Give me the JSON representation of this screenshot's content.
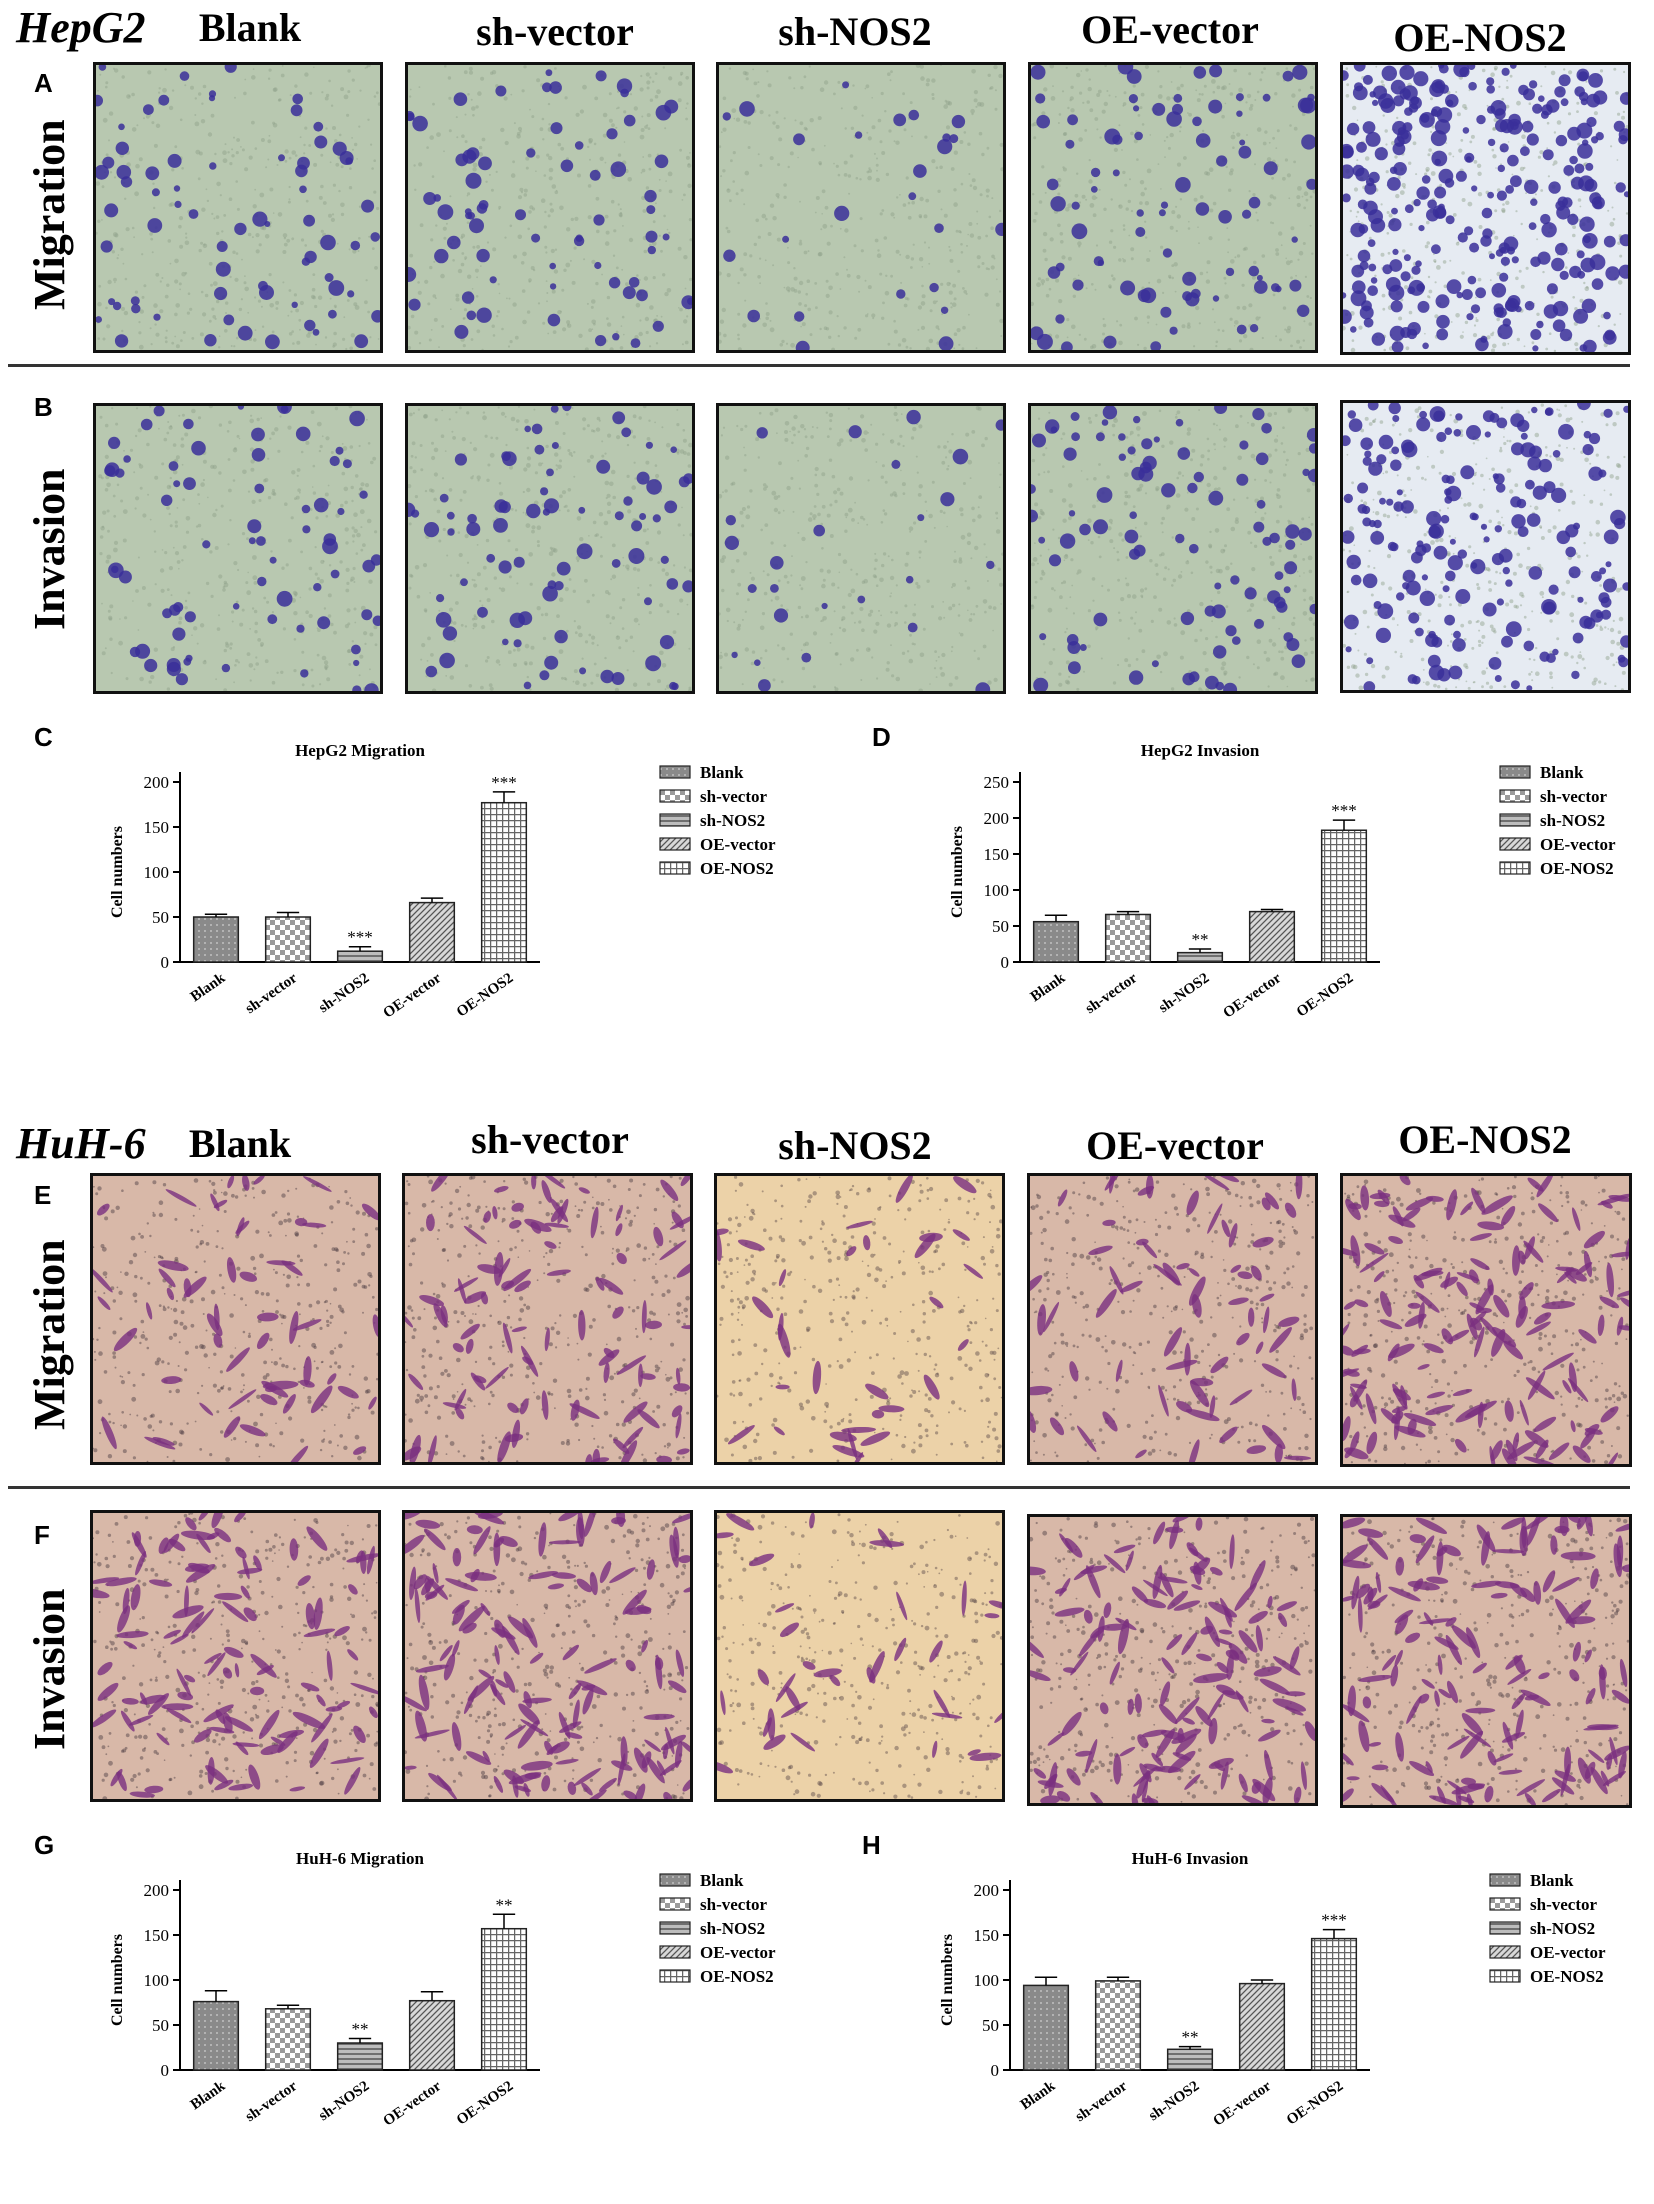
{
  "hepg2": {
    "title": "HepG2",
    "columns": [
      "Blank",
      "sh-vector",
      "sh-NOS2",
      "OE-vector",
      "OE-NOS2"
    ],
    "panels": {
      "A": "A",
      "B": "B",
      "C": "C",
      "D": "D"
    },
    "rows": {
      "migration": "Migration",
      "invasion": "Invasion"
    }
  },
  "huh6": {
    "title": "HuH-6",
    "columns": [
      "Blank",
      "sh-vector",
      "sh-NOS2",
      "OE-vector",
      "OE-NOS2"
    ],
    "panels": {
      "E": "E",
      "F": "F",
      "G": "G",
      "H": "H"
    },
    "rows": {
      "migration": "Migration",
      "invasion": "Invasion"
    }
  },
  "colors": {
    "hepg2_background": "#b8c8b0",
    "hepg2_stain": "#3a2f9a",
    "huh6_background": "#d8b8a8",
    "huh6_stain": "#7a2f80",
    "bar_fill": "#8a8a8a",
    "axis": "#000000"
  },
  "legend_patterns": [
    "dots",
    "checker",
    "horizontal-lines",
    "diagonal-lines",
    "grid"
  ],
  "chart_data": [
    {
      "id": "C",
      "type": "bar",
      "title": "HepG2 Migration",
      "ylabel": "Cell numbers",
      "xlabel": "",
      "categories": [
        "Blank",
        "sh-vector",
        "sh-NOS2",
        "OE-vector",
        "OE-NOS2"
      ],
      "values": [
        50,
        50,
        12,
        66,
        177
      ],
      "errors": [
        3,
        5,
        5,
        5,
        12
      ],
      "significance": [
        "",
        "",
        "***",
        "",
        "***"
      ],
      "ylim": [
        0,
        200
      ],
      "yticks": [
        0,
        50,
        100,
        150,
        200
      ],
      "legend": [
        "Blank",
        "sh-vector",
        "sh-NOS2",
        "OE-vector",
        "OE-NOS2"
      ],
      "legend_position": "right"
    },
    {
      "id": "D",
      "type": "bar",
      "title": "HepG2 Invasion",
      "ylabel": "Cell numbers",
      "xlabel": "",
      "categories": [
        "Blank",
        "sh-vector",
        "sh-NOS2",
        "OE-vector",
        "OE-NOS2"
      ],
      "values": [
        56,
        66,
        13,
        70,
        183
      ],
      "errors": [
        9,
        4,
        5,
        3,
        14
      ],
      "significance": [
        "",
        "",
        "**",
        "",
        "***"
      ],
      "ylim": [
        0,
        250
      ],
      "yticks": [
        0,
        50,
        100,
        150,
        200,
        250
      ],
      "legend": [
        "Blank",
        "sh-vector",
        "sh-NOS2",
        "OE-vector",
        "OE-NOS2"
      ],
      "legend_position": "right"
    },
    {
      "id": "G",
      "type": "bar",
      "title": "HuH-6 Migration",
      "ylabel": "Cell numbers",
      "xlabel": "",
      "categories": [
        "Blank",
        "sh-vector",
        "sh-NOS2",
        "OE-vector",
        "OE-NOS2"
      ],
      "values": [
        76,
        68,
        30,
        77,
        157
      ],
      "errors": [
        12,
        4,
        5,
        10,
        16
      ],
      "significance": [
        "",
        "",
        "**",
        "",
        "**"
      ],
      "ylim": [
        0,
        200
      ],
      "yticks": [
        0,
        50,
        100,
        150,
        200
      ],
      "legend": [
        "Blank",
        "sh-vector",
        "sh-NOS2",
        "OE-vector",
        "OE-NOS2"
      ],
      "legend_position": "right"
    },
    {
      "id": "H",
      "type": "bar",
      "title": "HuH-6 Invasion",
      "ylabel": "Cell numbers",
      "xlabel": "",
      "categories": [
        "Blank",
        "sh-vector",
        "sh-NOS2",
        "OE-vector",
        "OE-NOS2"
      ],
      "values": [
        94,
        99,
        23,
        96,
        146
      ],
      "errors": [
        9,
        4,
        3,
        4,
        10
      ],
      "significance": [
        "",
        "",
        "**",
        "",
        "***"
      ],
      "ylim": [
        0,
        200
      ],
      "yticks": [
        0,
        50,
        100,
        150,
        200
      ],
      "legend": [
        "Blank",
        "sh-vector",
        "sh-NOS2",
        "OE-vector",
        "OE-NOS2"
      ],
      "legend_position": "right"
    }
  ]
}
